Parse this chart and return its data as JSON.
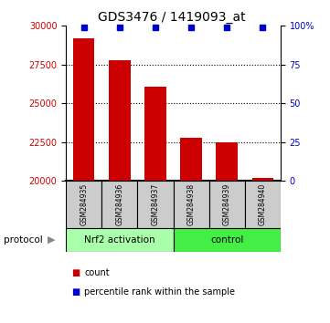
{
  "title": "GDS3476 / 1419093_at",
  "samples": [
    "GSM284935",
    "GSM284936",
    "GSM284937",
    "GSM284938",
    "GSM284939",
    "GSM284940"
  ],
  "counts": [
    29200,
    27800,
    26100,
    22800,
    22500,
    20200
  ],
  "percentile_ranks": [
    99,
    99,
    99,
    99,
    99,
    99
  ],
  "ylim_left": [
    20000,
    30000
  ],
  "ylim_right": [
    0,
    100
  ],
  "yticks_left": [
    20000,
    22500,
    25000,
    27500,
    30000
  ],
  "yticks_right": [
    0,
    25,
    50,
    75,
    100
  ],
  "grid_values": [
    22500,
    25000,
    27500
  ],
  "groups": [
    {
      "label": "Nrf2 activation",
      "samples": [
        0,
        1,
        2
      ],
      "color": "#aaffaa"
    },
    {
      "label": "control",
      "samples": [
        3,
        4,
        5
      ],
      "color": "#44ee44"
    }
  ],
  "bar_color": "#cc0000",
  "dot_color": "#0000cc",
  "bar_width": 0.6,
  "sample_box_color": "#cccccc",
  "title_fontsize": 10,
  "axis_label_color_left": "#cc0000",
  "axis_label_color_right": "#0000cc",
  "legend_items": [
    {
      "label": "count",
      "color": "#cc0000"
    },
    {
      "label": "percentile rank within the sample",
      "color": "#0000cc"
    }
  ]
}
